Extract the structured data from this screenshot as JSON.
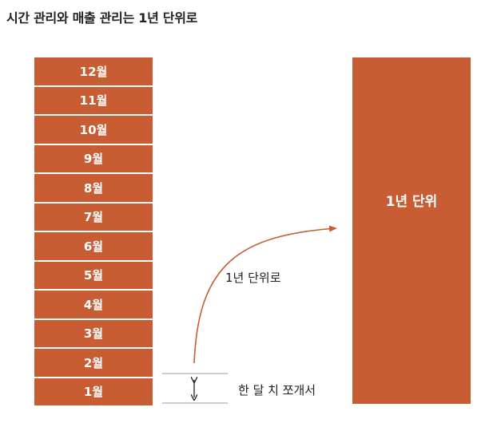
{
  "title": "시간 관리와 매출 관리는 1년 단위로",
  "colors": {
    "accent": "#c85c33",
    "guide": "#9a9a9a",
    "text": "#222222"
  },
  "months": [
    "12월",
    "11월",
    "10월",
    "9월",
    "8월",
    "7월",
    "6월",
    "5월",
    "4월",
    "3월",
    "2월",
    "1월"
  ],
  "year_block_label": "1년 단위",
  "arc_label": "1년 단위로",
  "split_label": "한 달 치 쪼개서",
  "icons": {
    "curved_arrow": "curved-arrow-icon",
    "double_arrow": "double-arrow-icon"
  }
}
